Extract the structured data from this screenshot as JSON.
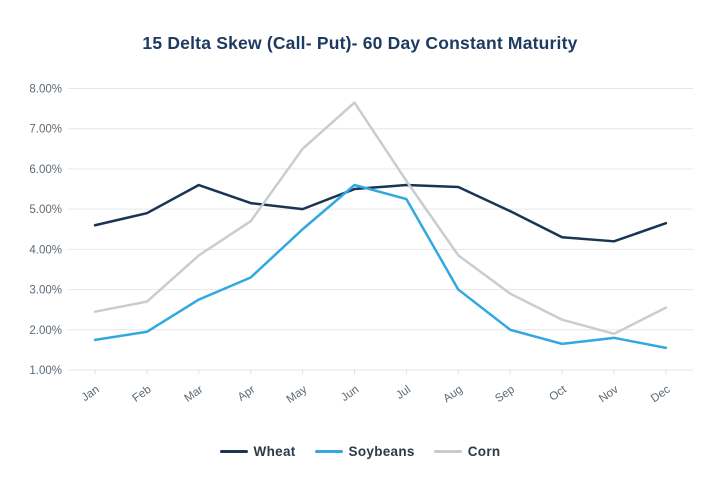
{
  "chart_data": {
    "type": "line",
    "title": "15 Delta Skew (Call- Put)- 60 Day Constant Maturity",
    "xlabel": "",
    "ylabel": "",
    "categories": [
      "Jan",
      "Feb",
      "Mar",
      "Apr",
      "May",
      "Jun",
      "Jul",
      "Aug",
      "Sep",
      "Oct",
      "Nov",
      "Dec"
    ],
    "series": [
      {
        "name": "Wheat",
        "color": "#1a3553",
        "values": [
          4.6,
          4.9,
          5.6,
          5.15,
          5.0,
          5.5,
          5.6,
          5.55,
          4.95,
          4.3,
          4.2,
          4.65
        ]
      },
      {
        "name": "Soybeans",
        "color": "#31a8e0",
        "values": [
          1.75,
          1.95,
          2.75,
          3.3,
          4.5,
          5.6,
          5.25,
          3.0,
          2.0,
          1.65,
          1.8,
          1.55
        ]
      },
      {
        "name": "Corn",
        "color": "#c8cdd2",
        "values": [
          2.45,
          2.7,
          3.85,
          4.7,
          6.5,
          7.65,
          5.7,
          3.85,
          2.9,
          2.25,
          1.9,
          2.55
        ]
      }
    ],
    "yticks": [
      {
        "value": 8,
        "label": "8.00%"
      },
      {
        "value": 7,
        "label": "7.00%"
      },
      {
        "value": 6,
        "label": "6.00%"
      },
      {
        "value": 5,
        "label": "5.00%"
      },
      {
        "value": 4,
        "label": "4.00%"
      },
      {
        "value": 3,
        "label": "3.00%"
      },
      {
        "value": 2,
        "label": "2.00%"
      },
      {
        "value": 1,
        "label": "1.00%"
      }
    ],
    "ylim": [
      1,
      8
    ],
    "grid": true,
    "legend_position": "bottom",
    "colors": {
      "grid_line": "#e4e7ea",
      "axis_tick": "#dfe2e5",
      "axis_label": "#5c6a75",
      "title_text": "#1d3b60",
      "legend_text": "#2b3a48",
      "background": "#ffffff"
    }
  }
}
